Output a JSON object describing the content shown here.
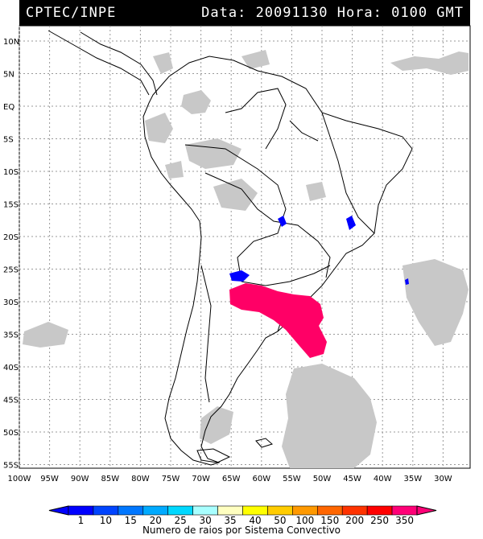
{
  "header": {
    "source": "CPTEC/INPE",
    "date_label": "Data: 20091130",
    "time_label": "Hora: 0100 GMT"
  },
  "axes": {
    "lat_labels": [
      "10N",
      "5N",
      "EQ",
      "5S",
      "10S",
      "15S",
      "20S",
      "25S",
      "30S",
      "35S",
      "40S",
      "45S",
      "50S",
      "55S"
    ],
    "lon_labels": [
      "100W",
      "95W",
      "90W",
      "85W",
      "80W",
      "75W",
      "70W",
      "65W",
      "60W",
      "55W",
      "50W",
      "45W",
      "40W",
      "35W",
      "30W"
    ]
  },
  "legend": {
    "title": "Numero de raios por Sistema Convectivo",
    "ticks": [
      "1",
      "10",
      "15",
      "20",
      "25",
      "30",
      "35",
      "40",
      "50",
      "100",
      "150",
      "200",
      "250",
      "350"
    ],
    "colors": [
      "#0000ff",
      "#0044ff",
      "#0077ff",
      "#00aaff",
      "#00d8ff",
      "#a8ffff",
      "#ffffc0",
      "#ffff00",
      "#ffcc00",
      "#ff9900",
      "#ff6600",
      "#ff3300",
      "#ff0000",
      "#ff0077"
    ]
  },
  "colors": {
    "cloud": "#c8c8c8",
    "high_lightning": "#ff0066",
    "low_lightning": "#0000ff",
    "coast": "#000000"
  }
}
